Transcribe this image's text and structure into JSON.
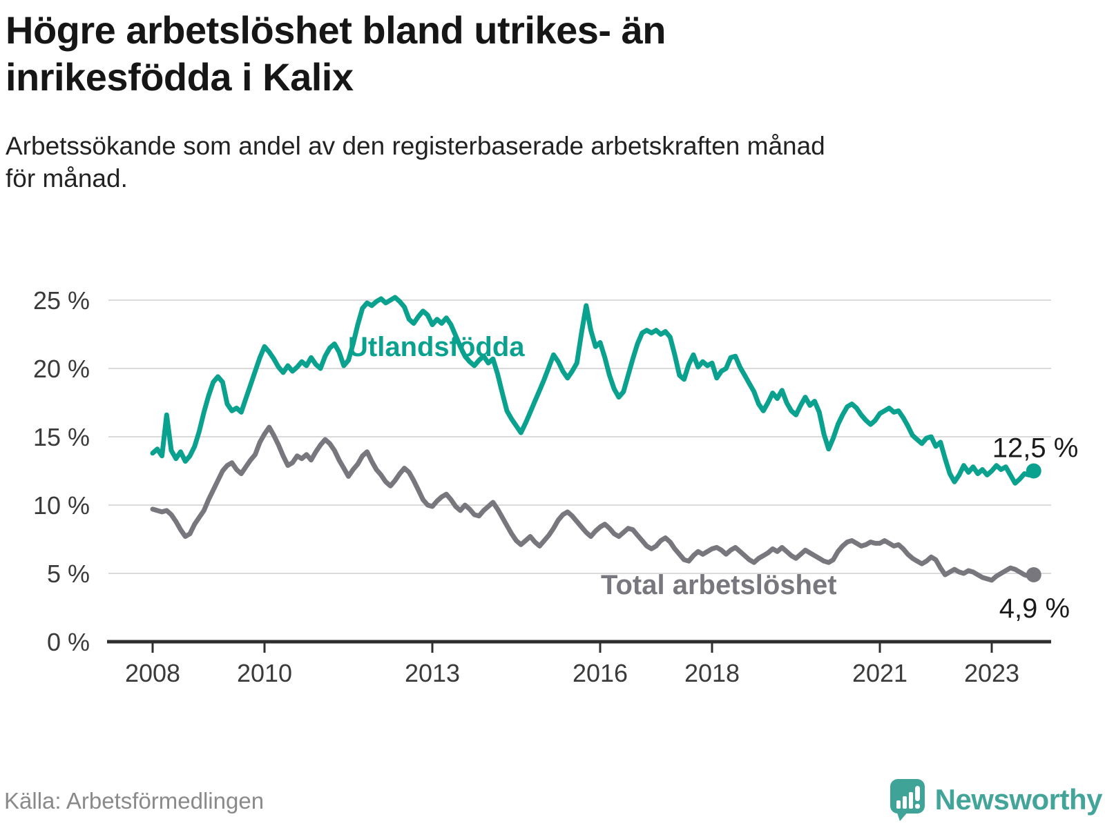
{
  "header": {
    "title": "Högre arbetslöshet bland utrikes- än\ninrikesfödda i Kalix",
    "subtitle": "Arbetssökande som andel av den registerbaserade arbetskraften månad\nför månad."
  },
  "footer": {
    "source": "Källa: Arbetsförmedlingen",
    "brand_name": "Newsworthy",
    "brand_icon": "speech-bubble-bar-chart-icon"
  },
  "colors": {
    "series_foreign_born": "#0ba18f",
    "series_total": "#77777d",
    "grid": "#dadada",
    "axis": "#2f2f2f",
    "axis_text": "#3a3a3a",
    "value_label_text": "#1a1a1a",
    "brand_teal": "#43a49a",
    "source_text": "#8a8a8a"
  },
  "chart_data": {
    "type": "line",
    "unit": "%",
    "frequency": "monthly",
    "start": "2008-01",
    "end": "2023-10",
    "ylim": [
      0,
      25
    ],
    "grid": "horizontal",
    "legend_position": "inline",
    "y_ticks": [
      {
        "value": 0,
        "label": "0 %"
      },
      {
        "value": 5,
        "label": "5 %"
      },
      {
        "value": 10,
        "label": "10 %"
      },
      {
        "value": 15,
        "label": "15 %"
      },
      {
        "value": 20,
        "label": "20 %"
      },
      {
        "value": 25,
        "label": "25 %"
      }
    ],
    "x_ticks": [
      {
        "value": 2008,
        "label": "2008"
      },
      {
        "value": 2010,
        "label": "2010"
      },
      {
        "value": 2013,
        "label": "2013"
      },
      {
        "value": 2016,
        "label": "2016"
      },
      {
        "value": 2018,
        "label": "2018"
      },
      {
        "value": 2021,
        "label": "2021"
      },
      {
        "value": 2023,
        "label": "2023"
      }
    ],
    "series": [
      {
        "name": "Utlandsfödda",
        "color_key": "series_foreign_born",
        "end_label": "12,5 %",
        "end_value": 12.5,
        "values": [
          13.8,
          14.1,
          13.6,
          16.6,
          14.0,
          13.4,
          13.9,
          13.2,
          13.6,
          14.3,
          15.4,
          16.8,
          18.0,
          19.0,
          19.4,
          19.0,
          17.4,
          16.9,
          17.1,
          16.8,
          17.8,
          18.8,
          19.8,
          20.8,
          21.6,
          21.2,
          20.7,
          20.1,
          19.7,
          20.2,
          19.8,
          20.1,
          20.5,
          20.2,
          20.8,
          20.3,
          20.0,
          20.9,
          21.5,
          21.8,
          21.2,
          20.2,
          20.6,
          21.8,
          23.2,
          24.4,
          24.8,
          24.6,
          24.9,
          25.1,
          24.8,
          25.0,
          25.2,
          24.9,
          24.5,
          23.6,
          23.3,
          23.8,
          24.2,
          23.9,
          23.2,
          23.6,
          23.3,
          23.7,
          23.2,
          22.4,
          21.6,
          20.9,
          20.5,
          20.2,
          20.6,
          20.9,
          20.4,
          20.7,
          19.6,
          18.2,
          16.9,
          16.3,
          15.8,
          15.3,
          16.0,
          16.8,
          17.6,
          18.4,
          19.2,
          20.1,
          21.0,
          20.5,
          19.8,
          19.3,
          19.8,
          20.4,
          22.6,
          24.6,
          22.8,
          21.6,
          21.9,
          20.8,
          19.5,
          18.5,
          17.9,
          18.3,
          19.5,
          20.7,
          21.8,
          22.6,
          22.8,
          22.6,
          22.8,
          22.5,
          22.7,
          22.3,
          21.0,
          19.5,
          19.2,
          20.3,
          21.0,
          20.1,
          20.5,
          20.2,
          20.4,
          19.3,
          19.8,
          20.0,
          20.8,
          20.9,
          20.1,
          19.5,
          18.9,
          18.3,
          17.4,
          16.9,
          17.5,
          18.2,
          17.8,
          18.4,
          17.5,
          16.9,
          16.6,
          17.3,
          17.9,
          17.3,
          17.6,
          16.8,
          15.2,
          14.1,
          14.9,
          15.9,
          16.6,
          17.2,
          17.4,
          17.1,
          16.6,
          16.2,
          15.9,
          16.2,
          16.7,
          16.9,
          17.1,
          16.8,
          16.9,
          16.4,
          15.8,
          15.1,
          14.8,
          14.5,
          14.9,
          15.0,
          14.3,
          14.6,
          13.4,
          12.3,
          11.7,
          12.2,
          12.9,
          12.4,
          12.8,
          12.3,
          12.6,
          12.2,
          12.5,
          12.9,
          12.6,
          12.8,
          12.2,
          11.6,
          11.9,
          12.3,
          12.2,
          12.5
        ]
      },
      {
        "name": "Total arbetslöshet",
        "color_key": "series_total",
        "end_label": "4,9 %",
        "end_value": 4.9,
        "values": [
          9.7,
          9.6,
          9.5,
          9.6,
          9.3,
          8.8,
          8.2,
          7.7,
          7.9,
          8.6,
          9.1,
          9.6,
          10.4,
          11.1,
          11.8,
          12.5,
          12.9,
          13.1,
          12.6,
          12.3,
          12.8,
          13.3,
          13.7,
          14.6,
          15.2,
          15.7,
          15.1,
          14.4,
          13.6,
          12.9,
          13.1,
          13.6,
          13.4,
          13.7,
          13.3,
          13.9,
          14.4,
          14.8,
          14.5,
          14.0,
          13.3,
          12.7,
          12.1,
          12.6,
          13.0,
          13.6,
          13.9,
          13.2,
          12.6,
          12.2,
          11.7,
          11.4,
          11.8,
          12.3,
          12.7,
          12.4,
          11.8,
          11.1,
          10.4,
          10.0,
          9.9,
          10.3,
          10.6,
          10.8,
          10.4,
          9.9,
          9.6,
          10.0,
          9.7,
          9.3,
          9.2,
          9.6,
          9.9,
          10.2,
          9.7,
          9.1,
          8.5,
          7.9,
          7.4,
          7.1,
          7.4,
          7.7,
          7.3,
          7.0,
          7.4,
          7.8,
          8.3,
          8.9,
          9.3,
          9.5,
          9.2,
          8.8,
          8.4,
          8.0,
          7.7,
          8.1,
          8.4,
          8.6,
          8.3,
          7.9,
          7.7,
          8.0,
          8.3,
          8.2,
          7.8,
          7.4,
          7.0,
          6.8,
          7.0,
          7.4,
          7.6,
          7.3,
          6.8,
          6.4,
          6.0,
          5.9,
          6.3,
          6.6,
          6.4,
          6.6,
          6.8,
          6.9,
          6.7,
          6.4,
          6.7,
          6.9,
          6.6,
          6.3,
          6.0,
          5.8,
          6.1,
          6.3,
          6.5,
          6.8,
          6.6,
          6.9,
          6.6,
          6.3,
          6.1,
          6.4,
          6.7,
          6.5,
          6.3,
          6.1,
          5.9,
          5.8,
          6.0,
          6.6,
          7.0,
          7.3,
          7.4,
          7.2,
          7.0,
          7.1,
          7.3,
          7.2,
          7.2,
          7.4,
          7.2,
          7.0,
          7.1,
          6.8,
          6.4,
          6.1,
          5.9,
          5.7,
          5.9,
          6.2,
          6.0,
          5.4,
          4.9,
          5.1,
          5.3,
          5.1,
          5.0,
          5.2,
          5.1,
          4.9,
          4.7,
          4.6,
          4.5,
          4.8,
          5.0,
          5.2,
          5.4,
          5.3,
          5.1,
          4.9,
          4.8,
          4.9
        ]
      }
    ]
  }
}
